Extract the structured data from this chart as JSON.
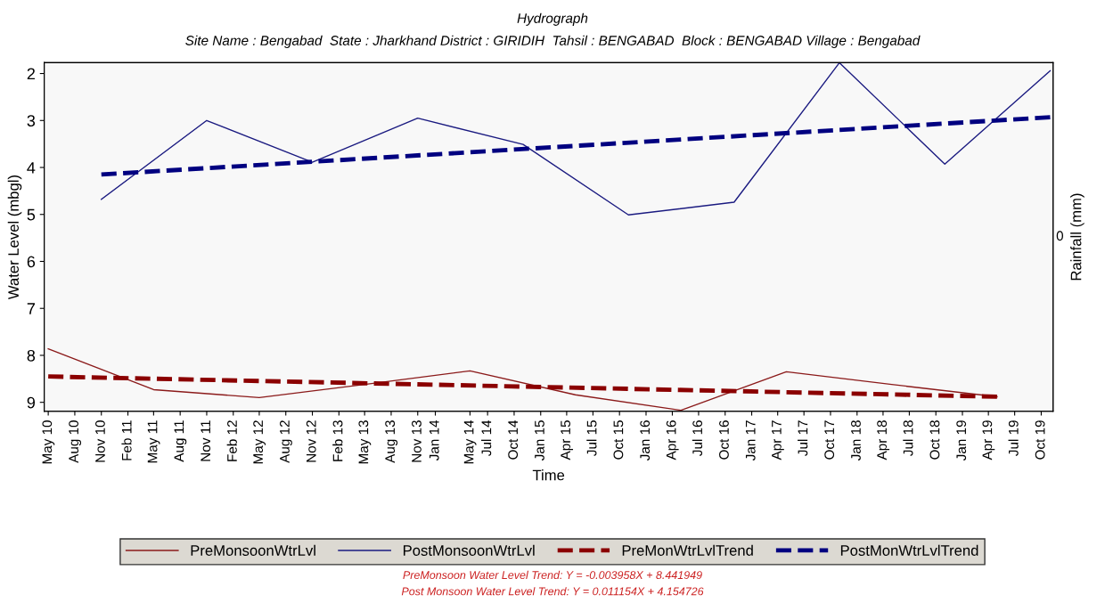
{
  "chart_data": {
    "type": "line",
    "title": "Hydrograph",
    "subtitle": "Site Name : Bengabad  State : Jharkhand District : GIRIDIH  Tahsil : BENGABAD  Block : BENGABAD Village : Bengabad",
    "xlabel": "Time",
    "ylabel": "Water Level (mbgl)",
    "y2label": "Rainfall (mm)",
    "ylim": [
      9.19,
      1.77
    ],
    "yticks": [
      2,
      3,
      4,
      5,
      6,
      7,
      8,
      9
    ],
    "xticks": [
      {
        "value": "2010-05-15",
        "label": "May 10"
      },
      {
        "value": "2010-08-15",
        "label": "Aug 10"
      },
      {
        "value": "2010-11-15",
        "label": "Nov 10"
      },
      {
        "value": "2011-02-15",
        "label": "Feb 11"
      },
      {
        "value": "2011-05-15",
        "label": "May 11"
      },
      {
        "value": "2011-08-15",
        "label": "Aug 11"
      },
      {
        "value": "2011-11-15",
        "label": "Nov 11"
      },
      {
        "value": "2012-02-15",
        "label": "Feb 12"
      },
      {
        "value": "2012-05-15",
        "label": "May 12"
      },
      {
        "value": "2012-08-15",
        "label": "Aug 12"
      },
      {
        "value": "2012-11-15",
        "label": "Nov 12"
      },
      {
        "value": "2013-02-15",
        "label": "Feb 13"
      },
      {
        "value": "2013-05-15",
        "label": "May 13"
      },
      {
        "value": "2013-08-15",
        "label": "Aug 13"
      },
      {
        "value": "2013-11-15",
        "label": "Nov 13"
      },
      {
        "value": "2014-01-15",
        "label": "Jan 14"
      },
      {
        "value": "2014-05-15",
        "label": "May 14"
      },
      {
        "value": "2014-07-15",
        "label": "Jul 14"
      },
      {
        "value": "2014-10-15",
        "label": "Oct 14"
      },
      {
        "value": "2015-01-15",
        "label": "Jan 15"
      },
      {
        "value": "2015-04-15",
        "label": "Apr 15"
      },
      {
        "value": "2015-07-15",
        "label": "Jul 15"
      },
      {
        "value": "2015-10-15",
        "label": "Oct 15"
      },
      {
        "value": "2016-01-15",
        "label": "Jan 16"
      },
      {
        "value": "2016-04-15",
        "label": "Apr 16"
      },
      {
        "value": "2016-07-15",
        "label": "Jul 16"
      },
      {
        "value": "2016-10-15",
        "label": "Oct 16"
      },
      {
        "value": "2017-01-15",
        "label": "Jan 17"
      },
      {
        "value": "2017-04-15",
        "label": "Apr 17"
      },
      {
        "value": "2017-07-15",
        "label": "Jul 17"
      },
      {
        "value": "2017-10-15",
        "label": "Oct 17"
      },
      {
        "value": "2018-01-15",
        "label": "Jan 18"
      },
      {
        "value": "2018-04-15",
        "label": "Apr 18"
      },
      {
        "value": "2018-07-15",
        "label": "Jul 18"
      },
      {
        "value": "2018-10-15",
        "label": "Oct 18"
      },
      {
        "value": "2019-01-15",
        "label": "Jan 19"
      },
      {
        "value": "2019-04-15",
        "label": "Apr 19"
      },
      {
        "value": "2019-07-15",
        "label": "Jul 19"
      },
      {
        "value": "2019-10-15",
        "label": "Oct 19"
      }
    ],
    "xlim": [
      "2010-05-01",
      "2019-11-25"
    ],
    "series": [
      {
        "name": "PreMonsoonWtrLvl",
        "color": "#8b1a1a",
        "line_style": "solid",
        "x": [
          "2010-05-15",
          "2011-05-15",
          "2012-05-15",
          "2013-05-15",
          "2014-05-15",
          "2015-05-15",
          "2016-05-15",
          "2017-05-15",
          "2018-05-15",
          "2019-05-15"
        ],
        "values": [
          7.86,
          8.73,
          8.9,
          8.62,
          8.33,
          8.84,
          9.17,
          8.35,
          8.62,
          8.88
        ]
      },
      {
        "name": "PostMonsoonWtrLvl",
        "color": "#1a1a80",
        "line_style": "solid",
        "x": [
          "2010-11-15",
          "2011-11-15",
          "2012-11-15",
          "2013-11-15",
          "2014-11-15",
          "2015-11-15",
          "2016-11-15",
          "2017-11-15",
          "2018-11-15",
          "2019-11-15"
        ],
        "values": [
          4.68,
          3.0,
          3.89,
          2.95,
          3.51,
          5.01,
          4.74,
          1.77,
          3.93,
          1.94
        ]
      },
      {
        "name": "PreMonWtrLvlTrend",
        "color": "#8b0000",
        "line_style": "dashed",
        "x": [
          "2010-05-15",
          "2019-05-15"
        ],
        "values": [
          8.45,
          8.88
        ]
      },
      {
        "name": "PostMonWtrLvlTrend",
        "color": "#000080",
        "line_style": "dashed",
        "x": [
          "2010-11-15",
          "2019-11-15"
        ],
        "values": [
          4.15,
          2.93
        ]
      }
    ],
    "legend": "bottom",
    "grid": false,
    "marker": "none",
    "annotations": [
      "0",
      "PreMonsoon Water Level Trend: Y = -0.003958X + 8.441949",
      "Post Monsoon Water Level Trend: Y = 0.011154X + 4.154726"
    ]
  }
}
